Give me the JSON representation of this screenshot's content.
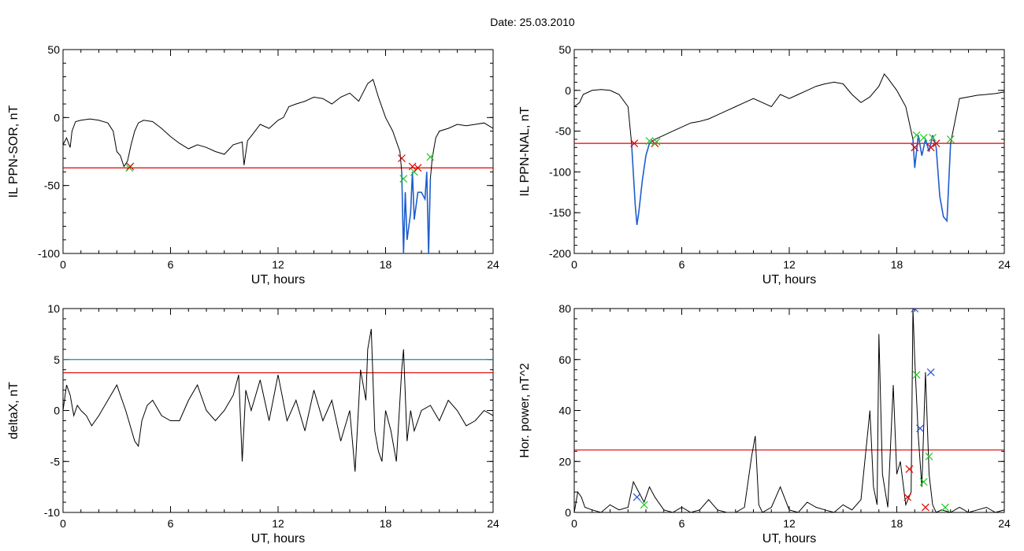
{
  "figure": {
    "title": "Date:  25.03.2010"
  },
  "colors": {
    "trace": "#000000",
    "threshold": "#e00000",
    "threshold2": "#1a8f8f",
    "highlight": "#1f5fd0",
    "marker_red": "#e00000",
    "marker_green": "#22c922",
    "marker_blue": "#2a4fd8"
  },
  "chart_data": [
    {
      "id": "sor",
      "type": "line",
      "xlabel": "UT, hours",
      "ylabel": "IL PPN-SOR, nT",
      "xlim": [
        0,
        24
      ],
      "ylim": [
        -100,
        50
      ],
      "xticks": [
        0,
        6,
        12,
        18,
        24
      ],
      "yticks": [
        -100,
        -50,
        0,
        50
      ],
      "x": [
        0,
        0.2,
        0.4,
        0.5,
        0.7,
        1.0,
        1.5,
        2.0,
        2.5,
        2.8,
        3.0,
        3.2,
        3.4,
        3.6,
        3.8,
        4.0,
        4.2,
        4.5,
        5.0,
        5.5,
        6.0,
        6.5,
        7.0,
        7.5,
        8.0,
        8.5,
        9.0,
        9.5,
        10.0,
        10.1,
        10.3,
        10.6,
        11.0,
        11.5,
        12.0,
        12.3,
        12.6,
        13.0,
        13.5,
        14.0,
        14.5,
        15.0,
        15.5,
        16.0,
        16.5,
        17.0,
        17.3,
        17.6,
        18.0,
        18.4,
        18.8,
        18.9,
        19.0,
        19.1,
        19.2,
        19.4,
        19.5,
        19.6,
        19.8,
        20.0,
        20.2,
        20.3,
        20.4,
        20.5,
        20.6,
        20.8,
        21.0,
        21.5,
        22.0,
        22.5,
        23.0,
        23.5,
        24.0
      ],
      "y": [
        -20,
        -15,
        -22,
        -10,
        -3,
        -2,
        -1,
        -2,
        -4,
        -10,
        -25,
        -28,
        -36,
        -32,
        -20,
        -10,
        -4,
        -2,
        -3,
        -8,
        -14,
        -19,
        -23,
        -20,
        -22,
        -25,
        -27,
        -20,
        -18,
        -35,
        -17,
        -12,
        -5,
        -8,
        -2,
        0,
        8,
        10,
        12,
        15,
        14,
        10,
        15,
        18,
        12,
        25,
        28,
        15,
        0,
        -10,
        -25,
        -40,
        -100,
        -55,
        -90,
        -70,
        -40,
        -75,
        -55,
        -55,
        -60,
        -40,
        -100,
        -45,
        -30,
        -15,
        -10,
        -8,
        -5,
        -6,
        -5,
        -4,
        -8
      ],
      "highlight": {
        "x": [
          18.9,
          20.5
        ]
      },
      "threshold": -37,
      "markers": [
        {
          "x": 3.7,
          "y": -37,
          "color": "marker_green"
        },
        {
          "x": 3.75,
          "y": -36,
          "color": "marker_red"
        },
        {
          "x": 18.9,
          "y": -30,
          "color": "marker_red"
        },
        {
          "x": 19.0,
          "y": -45,
          "color": "marker_green"
        },
        {
          "x": 19.5,
          "y": -36,
          "color": "marker_red"
        },
        {
          "x": 19.6,
          "y": -40,
          "color": "marker_green"
        },
        {
          "x": 19.8,
          "y": -37,
          "color": "marker_red"
        },
        {
          "x": 20.5,
          "y": -29,
          "color": "marker_green"
        }
      ]
    },
    {
      "id": "nal",
      "type": "line",
      "xlabel": "UT, hours",
      "ylabel": "IL PPN-NAL, nT",
      "xlim": [
        0,
        24
      ],
      "ylim": [
        -200,
        50
      ],
      "xticks": [
        0,
        6,
        12,
        18,
        24
      ],
      "yticks": [
        -200,
        -150,
        -100,
        -50,
        0,
        50
      ],
      "x": [
        0,
        0.3,
        0.5,
        1.0,
        1.5,
        2.0,
        2.5,
        3.0,
        3.2,
        3.4,
        3.5,
        3.6,
        3.8,
        4.0,
        4.2,
        4.5,
        5.0,
        5.5,
        6.0,
        6.5,
        7.0,
        7.5,
        8.0,
        8.5,
        9.0,
        9.5,
        10.0,
        10.5,
        11.0,
        11.5,
        12.0,
        12.5,
        13.0,
        13.5,
        14.0,
        14.5,
        15.0,
        15.5,
        16.0,
        16.5,
        17.0,
        17.3,
        17.5,
        18.0,
        18.5,
        18.9,
        19.0,
        19.2,
        19.4,
        19.6,
        19.8,
        20.0,
        20.2,
        20.4,
        20.6,
        20.8,
        21.0,
        21.5,
        22.0,
        22.5,
        23.0,
        23.5,
        24.0
      ],
      "y": [
        -20,
        -15,
        -5,
        0,
        1,
        0,
        -5,
        -20,
        -65,
        -140,
        -165,
        -150,
        -110,
        -80,
        -65,
        -60,
        -55,
        -50,
        -45,
        -40,
        -38,
        -35,
        -30,
        -25,
        -20,
        -15,
        -10,
        -15,
        -20,
        -5,
        -10,
        -5,
        0,
        5,
        8,
        10,
        8,
        -5,
        -15,
        -8,
        5,
        20,
        15,
        0,
        -20,
        -60,
        -95,
        -55,
        -80,
        -60,
        -75,
        -55,
        -70,
        -130,
        -155,
        -160,
        -65,
        -10,
        -8,
        -6,
        -5,
        -4,
        -2
      ],
      "highlight": {
        "x": [
          3.2,
          4.5
        ],
        "x2": [
          18.9,
          21.0
        ]
      },
      "threshold": -65,
      "markers": [
        {
          "x": 3.35,
          "y": -65,
          "color": "marker_red"
        },
        {
          "x": 4.2,
          "y": -62,
          "color": "marker_green"
        },
        {
          "x": 4.5,
          "y": -65,
          "color": "marker_red"
        },
        {
          "x": 4.6,
          "y": -63,
          "color": "marker_green"
        },
        {
          "x": 19.0,
          "y": -70,
          "color": "marker_red"
        },
        {
          "x": 19.1,
          "y": -55,
          "color": "marker_green"
        },
        {
          "x": 19.5,
          "y": -58,
          "color": "marker_green"
        },
        {
          "x": 19.9,
          "y": -70,
          "color": "marker_red"
        },
        {
          "x": 20.0,
          "y": -58,
          "color": "marker_green"
        },
        {
          "x": 20.2,
          "y": -65,
          "color": "marker_red"
        },
        {
          "x": 21.0,
          "y": -60,
          "color": "marker_green"
        }
      ]
    },
    {
      "id": "deltax",
      "type": "line",
      "xlabel": "UT, hours",
      "ylabel": "deltaX, nT",
      "xlim": [
        0,
        24
      ],
      "ylim": [
        -10,
        10
      ],
      "xticks": [
        0,
        6,
        12,
        18,
        24
      ],
      "yticks": [
        -10,
        -5,
        0,
        5,
        10
      ],
      "x": [
        0,
        0.2,
        0.4,
        0.6,
        0.8,
        1.0,
        1.3,
        1.6,
        2.0,
        2.5,
        3.0,
        3.5,
        4.0,
        4.2,
        4.4,
        4.7,
        5.0,
        5.5,
        6.0,
        6.5,
        7.0,
        7.5,
        8.0,
        8.5,
        9.0,
        9.5,
        9.8,
        10.0,
        10.2,
        10.5,
        11.0,
        11.5,
        12.0,
        12.5,
        13.0,
        13.5,
        14.0,
        14.5,
        15.0,
        15.5,
        16.0,
        16.3,
        16.6,
        16.9,
        17.0,
        17.2,
        17.4,
        17.6,
        17.8,
        18.0,
        18.3,
        18.6,
        18.9,
        19.0,
        19.2,
        19.4,
        19.6,
        19.8,
        20.0,
        20.5,
        21.0,
        21.5,
        22.0,
        22.5,
        23.0,
        23.5,
        24.0
      ],
      "y": [
        0,
        2.5,
        1.5,
        -0.5,
        0.5,
        0,
        -0.5,
        -1.5,
        -0.5,
        1,
        2.5,
        0,
        -3,
        -3.5,
        -1,
        0.5,
        1,
        -0.5,
        -1,
        -1,
        1,
        2.5,
        0,
        -1,
        0,
        1.5,
        3.5,
        -5,
        2,
        0,
        3,
        -1,
        3.5,
        -1,
        1,
        -2,
        2,
        -1,
        1,
        -3,
        0,
        -6,
        4,
        1,
        6,
        8,
        -2,
        -4,
        -5,
        0,
        -2,
        -5,
        4,
        6,
        -3,
        0,
        -2,
        -1,
        0,
        0.5,
        -1,
        1,
        0,
        -1.5,
        -1,
        0,
        -0.5
      ],
      "threshold": 3.7,
      "threshold2": 5
    },
    {
      "id": "power",
      "type": "line",
      "xlabel": "UT, hours",
      "ylabel": "Hor. power, nT^2",
      "xlim": [
        0,
        24
      ],
      "ylim": [
        0,
        80
      ],
      "xticks": [
        0,
        6,
        12,
        18,
        24
      ],
      "yticks": [
        0,
        20,
        40,
        60,
        80
      ],
      "x": [
        0,
        0.2,
        0.4,
        0.6,
        1.0,
        1.5,
        2.0,
        2.5,
        3.0,
        3.3,
        3.6,
        3.9,
        4.2,
        4.5,
        5.0,
        5.5,
        6.0,
        6.5,
        7.0,
        7.5,
        8.0,
        8.5,
        9.0,
        9.5,
        9.9,
        10.1,
        10.3,
        10.5,
        11.0,
        11.5,
        12.0,
        12.5,
        13.0,
        13.5,
        14.0,
        14.5,
        15.0,
        15.5,
        16.0,
        16.5,
        16.7,
        16.9,
        17.0,
        17.2,
        17.5,
        17.8,
        18.0,
        18.2,
        18.5,
        18.8,
        18.9,
        19.0,
        19.2,
        19.4,
        19.6,
        19.8,
        20.0,
        20.2,
        20.5,
        21.0,
        21.5,
        22.0,
        22.5,
        23.0,
        23.5,
        24.0
      ],
      "y": [
        0,
        8,
        6,
        2,
        1,
        0,
        3,
        1,
        2,
        12,
        8,
        4,
        10,
        6,
        1,
        0,
        2,
        0,
        1,
        5,
        1,
        0,
        0,
        2,
        22,
        30,
        3,
        0,
        2,
        10,
        1,
        0,
        4,
        2,
        1,
        0,
        3,
        1,
        5,
        40,
        10,
        3,
        70,
        15,
        2,
        50,
        15,
        20,
        3,
        8,
        80,
        60,
        30,
        10,
        55,
        15,
        3,
        0,
        1,
        0,
        2,
        0,
        1,
        2,
        0,
        1
      ],
      "threshold": 24.5,
      "markers": [
        {
          "x": 3.5,
          "y": 6,
          "color": "marker_blue"
        },
        {
          "x": 3.9,
          "y": 3,
          "color": "marker_green"
        },
        {
          "x": 18.7,
          "y": 17,
          "color": "marker_red"
        },
        {
          "x": 18.6,
          "y": 6,
          "color": "marker_red"
        },
        {
          "x": 19.0,
          "y": 80,
          "color": "marker_blue"
        },
        {
          "x": 19.1,
          "y": 54,
          "color": "marker_green"
        },
        {
          "x": 19.3,
          "y": 33,
          "color": "marker_blue"
        },
        {
          "x": 19.5,
          "y": 12,
          "color": "marker_green"
        },
        {
          "x": 19.6,
          "y": 2,
          "color": "marker_red"
        },
        {
          "x": 19.8,
          "y": 22,
          "color": "marker_green"
        },
        {
          "x": 19.9,
          "y": 55,
          "color": "marker_blue"
        },
        {
          "x": 20.7,
          "y": 2,
          "color": "marker_green"
        }
      ]
    }
  ]
}
